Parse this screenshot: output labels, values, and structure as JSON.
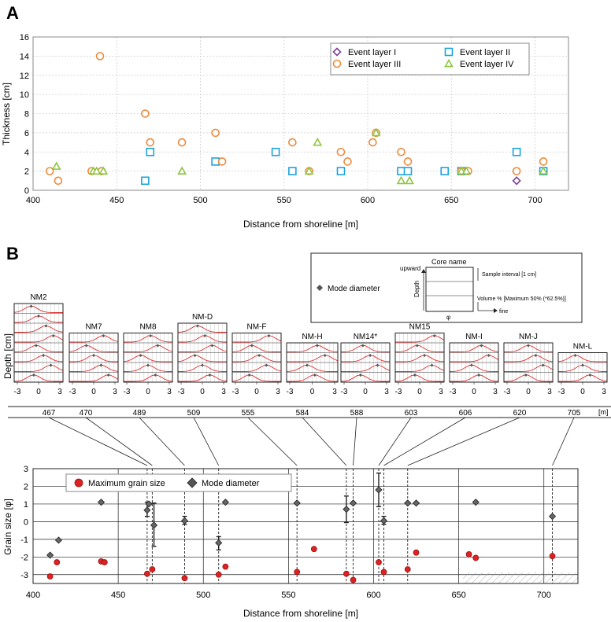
{
  "panel_labels": {
    "a": "A",
    "b": "B"
  },
  "colors": {
    "event_I": "#7b3f99",
    "event_II": "#1ba3dd",
    "event_III": "#ee8a3c",
    "event_IV": "#8cc63f",
    "max_grain": "#dd2222",
    "mode": "#555555",
    "profile": "#dd3030",
    "grid": "#c8c8c8"
  },
  "chart_data": [
    {
      "type": "scatter",
      "id": "panel-a",
      "title": "",
      "xlabel": "Distance from shoreline [m]",
      "ylabel": "Thickness [cm]",
      "xlim": [
        400,
        720
      ],
      "ylim": [
        0,
        16
      ],
      "xticks": [
        "400",
        "450",
        "500",
        "550",
        "600",
        "650",
        "700"
      ],
      "yticks": [
        "0",
        "2",
        "4",
        "6",
        "8",
        "10",
        "12",
        "14",
        "16"
      ],
      "legend_position": "top-right",
      "series": [
        {
          "name": "Event layer I",
          "marker": "diamond",
          "color": "#7b3f99",
          "points": [
            [
              689,
              1
            ]
          ]
        },
        {
          "name": "Event layer II",
          "marker": "square",
          "color": "#1ba3dd",
          "points": [
            [
              467,
              1
            ],
            [
              470,
              4
            ],
            [
              509,
              3
            ],
            [
              545,
              4
            ],
            [
              555,
              2
            ],
            [
              584,
              2
            ],
            [
              620,
              2
            ],
            [
              624,
              2
            ],
            [
              646,
              2
            ],
            [
              656,
              2
            ],
            [
              689,
              4
            ],
            [
              705,
              2
            ]
          ]
        },
        {
          "name": "Event layer III",
          "marker": "circle",
          "color": "#ee8a3c",
          "points": [
            [
              410,
              2
            ],
            [
              415,
              1
            ],
            [
              435,
              2
            ],
            [
              440,
              14
            ],
            [
              441,
              2
            ],
            [
              467,
              8
            ],
            [
              470,
              5
            ],
            [
              489,
              5
            ],
            [
              509,
              6
            ],
            [
              513,
              3
            ],
            [
              555,
              5
            ],
            [
              565,
              2
            ],
            [
              584,
              4
            ],
            [
              588,
              3
            ],
            [
              603,
              5
            ],
            [
              605,
              6
            ],
            [
              620,
              4
            ],
            [
              624,
              3
            ],
            [
              656,
              2
            ],
            [
              660,
              2
            ],
            [
              689,
              2
            ],
            [
              705,
              3
            ]
          ]
        },
        {
          "name": "Event layer IV",
          "marker": "triangle",
          "color": "#8cc63f",
          "points": [
            [
              414,
              2.5
            ],
            [
              436,
              2
            ],
            [
              438,
              2
            ],
            [
              442,
              2
            ],
            [
              489,
              2
            ],
            [
              565,
              2
            ],
            [
              570,
              5
            ],
            [
              605,
              6
            ],
            [
              620,
              1
            ],
            [
              625,
              1
            ],
            [
              656,
              2
            ],
            [
              659,
              2
            ],
            [
              705,
              2
            ]
          ]
        }
      ]
    },
    {
      "type": "line",
      "id": "panel-b-profiles",
      "title": "",
      "ylabel": "Depth [cm]",
      "xticks": [
        "-3",
        "0",
        "3"
      ],
      "cores": [
        {
          "name": "NM2",
          "distance": "467",
          "rows": 8
        },
        {
          "name": "NM7",
          "distance": "470",
          "rows": 5
        },
        {
          "name": "NM8",
          "distance": "489",
          "rows": 5
        },
        {
          "name": "NM-D",
          "distance": "509",
          "rows": 6
        },
        {
          "name": "NM-F",
          "distance": "555",
          "rows": 5
        },
        {
          "name": "NM-H",
          "distance": "584",
          "rows": 4
        },
        {
          "name": "NM14*",
          "distance": "588",
          "rows": 4
        },
        {
          "name": "NM15",
          "distance": "603",
          "rows": 5
        },
        {
          "name": "NM-I",
          "distance": "606",
          "rows": 4
        },
        {
          "name": "NM-J",
          "distance": "620",
          "rows": 4
        },
        {
          "name": "NM-L",
          "distance": "705",
          "rows": 3
        }
      ],
      "distance_unit": "[m]"
    },
    {
      "type": "scatter",
      "id": "panel-b-grain",
      "title": "",
      "xlabel": "Distance from shoreline [m]",
      "ylabel": "Grain size [φ]",
      "xlim": [
        400,
        720
      ],
      "ylim": [
        -3.5,
        3
      ],
      "xticks": [
        "400",
        "450",
        "500",
        "550",
        "600",
        "650",
        "700"
      ],
      "yticks": [
        "3",
        "2",
        "1",
        "0",
        "-1",
        "-2",
        "-3"
      ],
      "legend_position": "top-left",
      "series": [
        {
          "name": "Maximum grain size",
          "marker": "circle",
          "color": "#dd2222",
          "points": [
            [
              410,
              -3.1
            ],
            [
              414,
              -2.3
            ],
            [
              440,
              -2.25
            ],
            [
              442,
              -2.3
            ],
            [
              467,
              -2.95
            ],
            [
              470,
              -2.7
            ],
            [
              489,
              -3.2
            ],
            [
              509,
              -3.0
            ],
            [
              513,
              -2.55
            ],
            [
              555,
              -2.85
            ],
            [
              565,
              -1.55
            ],
            [
              584,
              -2.95
            ],
            [
              588,
              -3.3
            ],
            [
              603,
              -2.3
            ],
            [
              606,
              -2.85
            ],
            [
              620,
              -2.7
            ],
            [
              625,
              -1.75
            ],
            [
              656,
              -1.85
            ],
            [
              660,
              -2.05
            ],
            [
              705,
              -1.95
            ]
          ]
        },
        {
          "name": "Mode diameter",
          "marker": "diamond",
          "color": "#555555",
          "points": [
            [
              410,
              -1.9
            ],
            [
              415,
              -1.05
            ],
            [
              440,
              1.1
            ],
            [
              467,
              0.65
            ],
            [
              468,
              1.0
            ],
            [
              471,
              -0.2
            ],
            [
              489,
              0.05
            ],
            [
              509,
              -1.2
            ],
            [
              513,
              1.1
            ],
            [
              555,
              1.05
            ],
            [
              584,
              0.7
            ],
            [
              588,
              1.05
            ],
            [
              603,
              1.8
            ],
            [
              606,
              0.05
            ],
            [
              620,
              1.05
            ],
            [
              625,
              1.05
            ],
            [
              660,
              1.1
            ],
            [
              705,
              0.3
            ]
          ],
          "error_bars": [
            [
              467,
              0.3,
              1.1
            ],
            [
              471,
              -1.4,
              1.05
            ],
            [
              489,
              -0.15,
              0.3
            ],
            [
              509,
              -1.6,
              -0.85
            ],
            [
              584,
              -0.05,
              1.45
            ],
            [
              603,
              0.85,
              2.75
            ],
            [
              606,
              -0.15,
              0.3
            ]
          ]
        }
      ],
      "vertical_markers": [
        "467",
        "470",
        "489",
        "509",
        "555",
        "584",
        "588",
        "603",
        "606",
        "620",
        "705"
      ]
    }
  ],
  "legend_box": {
    "mode_label": "Mode diameter",
    "core_name": "Core name",
    "upward": "upward",
    "depth": "Depth",
    "sample_interval": "Sample interval [1 cm]",
    "volume": "Volume %  [Maximum 50% (*62.5%)]",
    "fine": "fine",
    "phi": "φ"
  }
}
